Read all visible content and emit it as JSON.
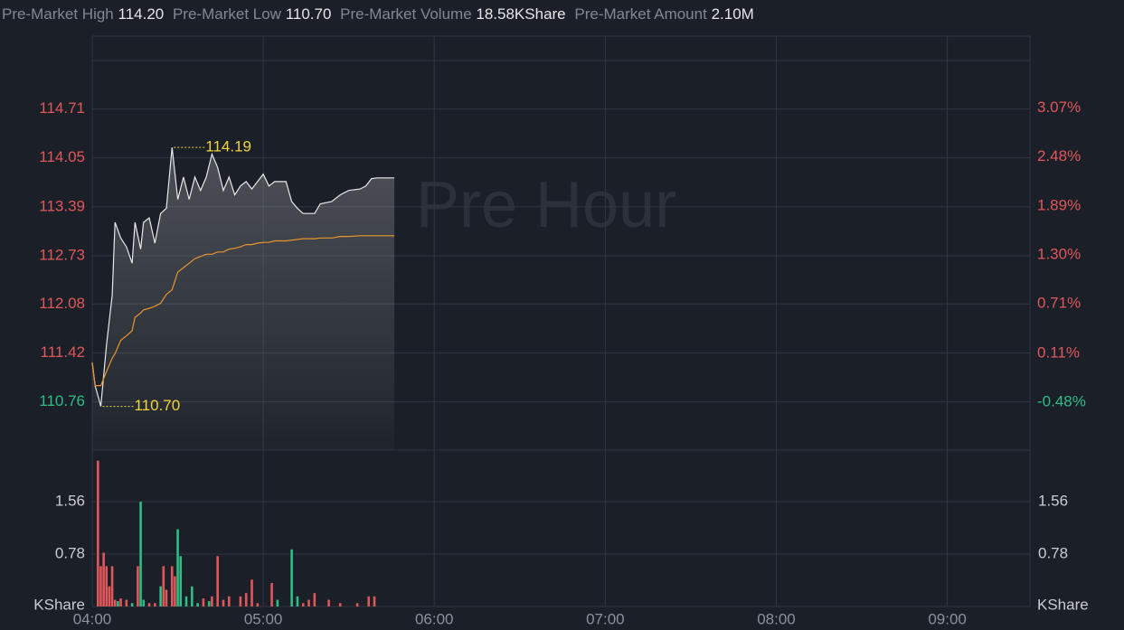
{
  "header": {
    "items": [
      {
        "label": "Pre-Market High",
        "value": "114.20"
      },
      {
        "label": "Pre-Market Low",
        "value": "110.70"
      },
      {
        "label": "Pre-Market Volume",
        "value": "18.58KShare"
      },
      {
        "label": "Pre-Market Amount",
        "value": "2.10M"
      }
    ]
  },
  "chart_data": [
    {
      "type": "line",
      "watermark": "Pre Hour",
      "x": [
        "04:00",
        "04:01",
        "04:03",
        "04:05",
        "04:07",
        "04:08",
        "04:10",
        "04:12",
        "04:14",
        "04:15",
        "04:17",
        "04:18",
        "04:20",
        "04:22",
        "04:24",
        "04:26",
        "04:28",
        "04:30",
        "04:32",
        "04:34",
        "04:36",
        "04:38",
        "04:40",
        "04:42",
        "04:44",
        "04:46",
        "04:48",
        "04:50",
        "04:52",
        "04:54",
        "04:56",
        "04:58",
        "05:00",
        "05:02",
        "05:04",
        "05:06",
        "05:08",
        "05:10",
        "05:12",
        "05:14",
        "05:18",
        "05:20",
        "05:24",
        "05:27",
        "05:30",
        "05:34",
        "05:36",
        "05:38",
        "05:40",
        "05:46"
      ],
      "series": [
        {
          "color": "#e6e8eb",
          "values": [
            111.29,
            110.98,
            110.7,
            111.53,
            112.2,
            113.18,
            112.97,
            112.85,
            112.63,
            113.18,
            112.82,
            113.18,
            113.24,
            112.9,
            113.3,
            113.37,
            114.19,
            113.49,
            113.79,
            113.49,
            113.79,
            113.61,
            113.79,
            114.1,
            113.92,
            113.61,
            113.79,
            113.55,
            113.67,
            113.73,
            113.63,
            113.73,
            113.83,
            113.67,
            113.73,
            113.73,
            113.73,
            113.46,
            113.37,
            113.3,
            113.3,
            113.43,
            113.46,
            113.55,
            113.61,
            113.63,
            113.67,
            113.77,
            113.78,
            113.78
          ]
        },
        {
          "color": "#e8952e",
          "values": [
            111.29,
            110.98,
            110.98,
            111.17,
            111.35,
            111.41,
            111.59,
            111.65,
            111.72,
            111.9,
            111.96,
            112.0,
            112.02,
            112.05,
            112.09,
            112.21,
            112.27,
            112.51,
            112.57,
            112.63,
            112.69,
            112.72,
            112.75,
            112.75,
            112.78,
            112.78,
            112.82,
            112.83,
            112.85,
            112.88,
            112.88,
            112.9,
            112.91,
            112.91,
            112.93,
            112.93,
            112.93,
            112.94,
            112.95,
            112.96,
            112.96,
            112.97,
            112.97,
            112.99,
            112.99,
            113.0,
            113.0,
            113.0,
            113.0,
            113.0
          ]
        }
      ],
      "annotations": [
        {
          "text": "114.19",
          "x": "04:28",
          "y": 114.19
        },
        {
          "text": "110.70",
          "x": "04:03",
          "y": 110.7
        }
      ],
      "annotation_color": "#f0d43a",
      "xlim": [
        "04:00",
        "09:29"
      ],
      "xticks": [
        "04:00",
        "05:00",
        "06:00",
        "07:00",
        "08:00",
        "09:00"
      ],
      "ylim": [
        110.11,
        115.69
      ],
      "yticks": [
        114.71,
        114.05,
        113.39,
        112.73,
        112.08,
        111.42,
        110.76
      ],
      "y2lim": [
        -1.06,
        3.94
      ],
      "y2ticks": [
        {
          "value": 3.07,
          "label": "3.07%"
        },
        {
          "value": 2.48,
          "label": "2.48%"
        },
        {
          "value": 1.89,
          "label": "1.89%"
        },
        {
          "value": 1.3,
          "label": "1.30%"
        },
        {
          "value": 0.71,
          "label": "0.71%"
        },
        {
          "value": 0.11,
          "label": "0.11%"
        },
        {
          "value": -0.48,
          "label": "-0.48%"
        }
      ],
      "up_color": "#e0575b",
      "down_color": "#2ebd85",
      "grid": true
    },
    {
      "type": "bar",
      "unit": "KShare",
      "x": [
        "04:02",
        "04:03",
        "04:04",
        "04:05",
        "04:06",
        "04:07",
        "04:08",
        "04:09",
        "04:10",
        "04:12",
        "04:14",
        "04:16",
        "04:17",
        "04:18",
        "04:20",
        "04:22",
        "04:24",
        "04:25",
        "04:26",
        "04:28",
        "04:29",
        "04:30",
        "04:31",
        "04:33",
        "04:35",
        "04:37",
        "04:39",
        "04:41",
        "04:42",
        "04:44",
        "04:46",
        "04:48",
        "04:52",
        "04:54",
        "04:56",
        "04:58",
        "05:03",
        "05:05",
        "05:10",
        "05:12",
        "05:14",
        "05:16",
        "05:18",
        "05:23",
        "05:27",
        "05:33",
        "05:37",
        "05:39"
      ],
      "values": [
        2.17,
        0.6,
        0.8,
        0.6,
        0.3,
        0.6,
        0.1,
        0.08,
        0.12,
        0.1,
        0.05,
        0.6,
        1.56,
        0.1,
        0.05,
        0.05,
        0.3,
        0.6,
        0.25,
        0.6,
        0.45,
        1.15,
        0.75,
        0.15,
        0.3,
        0.05,
        0.12,
        0.08,
        0.15,
        0.75,
        0.1,
        0.15,
        0.15,
        0.2,
        0.4,
        0.05,
        0.35,
        0.1,
        0.85,
        0.15,
        0.05,
        0.1,
        0.2,
        0.1,
        0.05,
        0.05,
        0.15,
        0.15
      ],
      "colors": [
        "#e0575b",
        "#e0575b",
        "#e0575b",
        "#e0575b",
        "#e0575b",
        "#e0575b",
        "#e0575b",
        "#2ebd85",
        "#e0575b",
        "#e0575b",
        "#2ebd85",
        "#e0575b",
        "#2ebd85",
        "#2ebd85",
        "#e0575b",
        "#e0575b",
        "#2ebd85",
        "#e0575b",
        "#e0575b",
        "#e0575b",
        "#e0575b",
        "#2ebd85",
        "#2ebd85",
        "#2ebd85",
        "#2ebd85",
        "#2ebd85",
        "#e0575b",
        "#2ebd85",
        "#e0575b",
        "#e0575b",
        "#e0575b",
        "#e0575b",
        "#e0575b",
        "#e0575b",
        "#e0575b",
        "#e0575b",
        "#e0575b",
        "#2ebd85",
        "#2ebd85",
        "#2ebd85",
        "#e0575b",
        "#e0575b",
        "#e0575b",
        "#e0575b",
        "#e0575b",
        "#e0575b",
        "#e0575b",
        "#e0575b"
      ],
      "ylim": [
        0,
        2.3
      ],
      "yticks": [
        0.78,
        1.56
      ],
      "grid": true
    }
  ]
}
